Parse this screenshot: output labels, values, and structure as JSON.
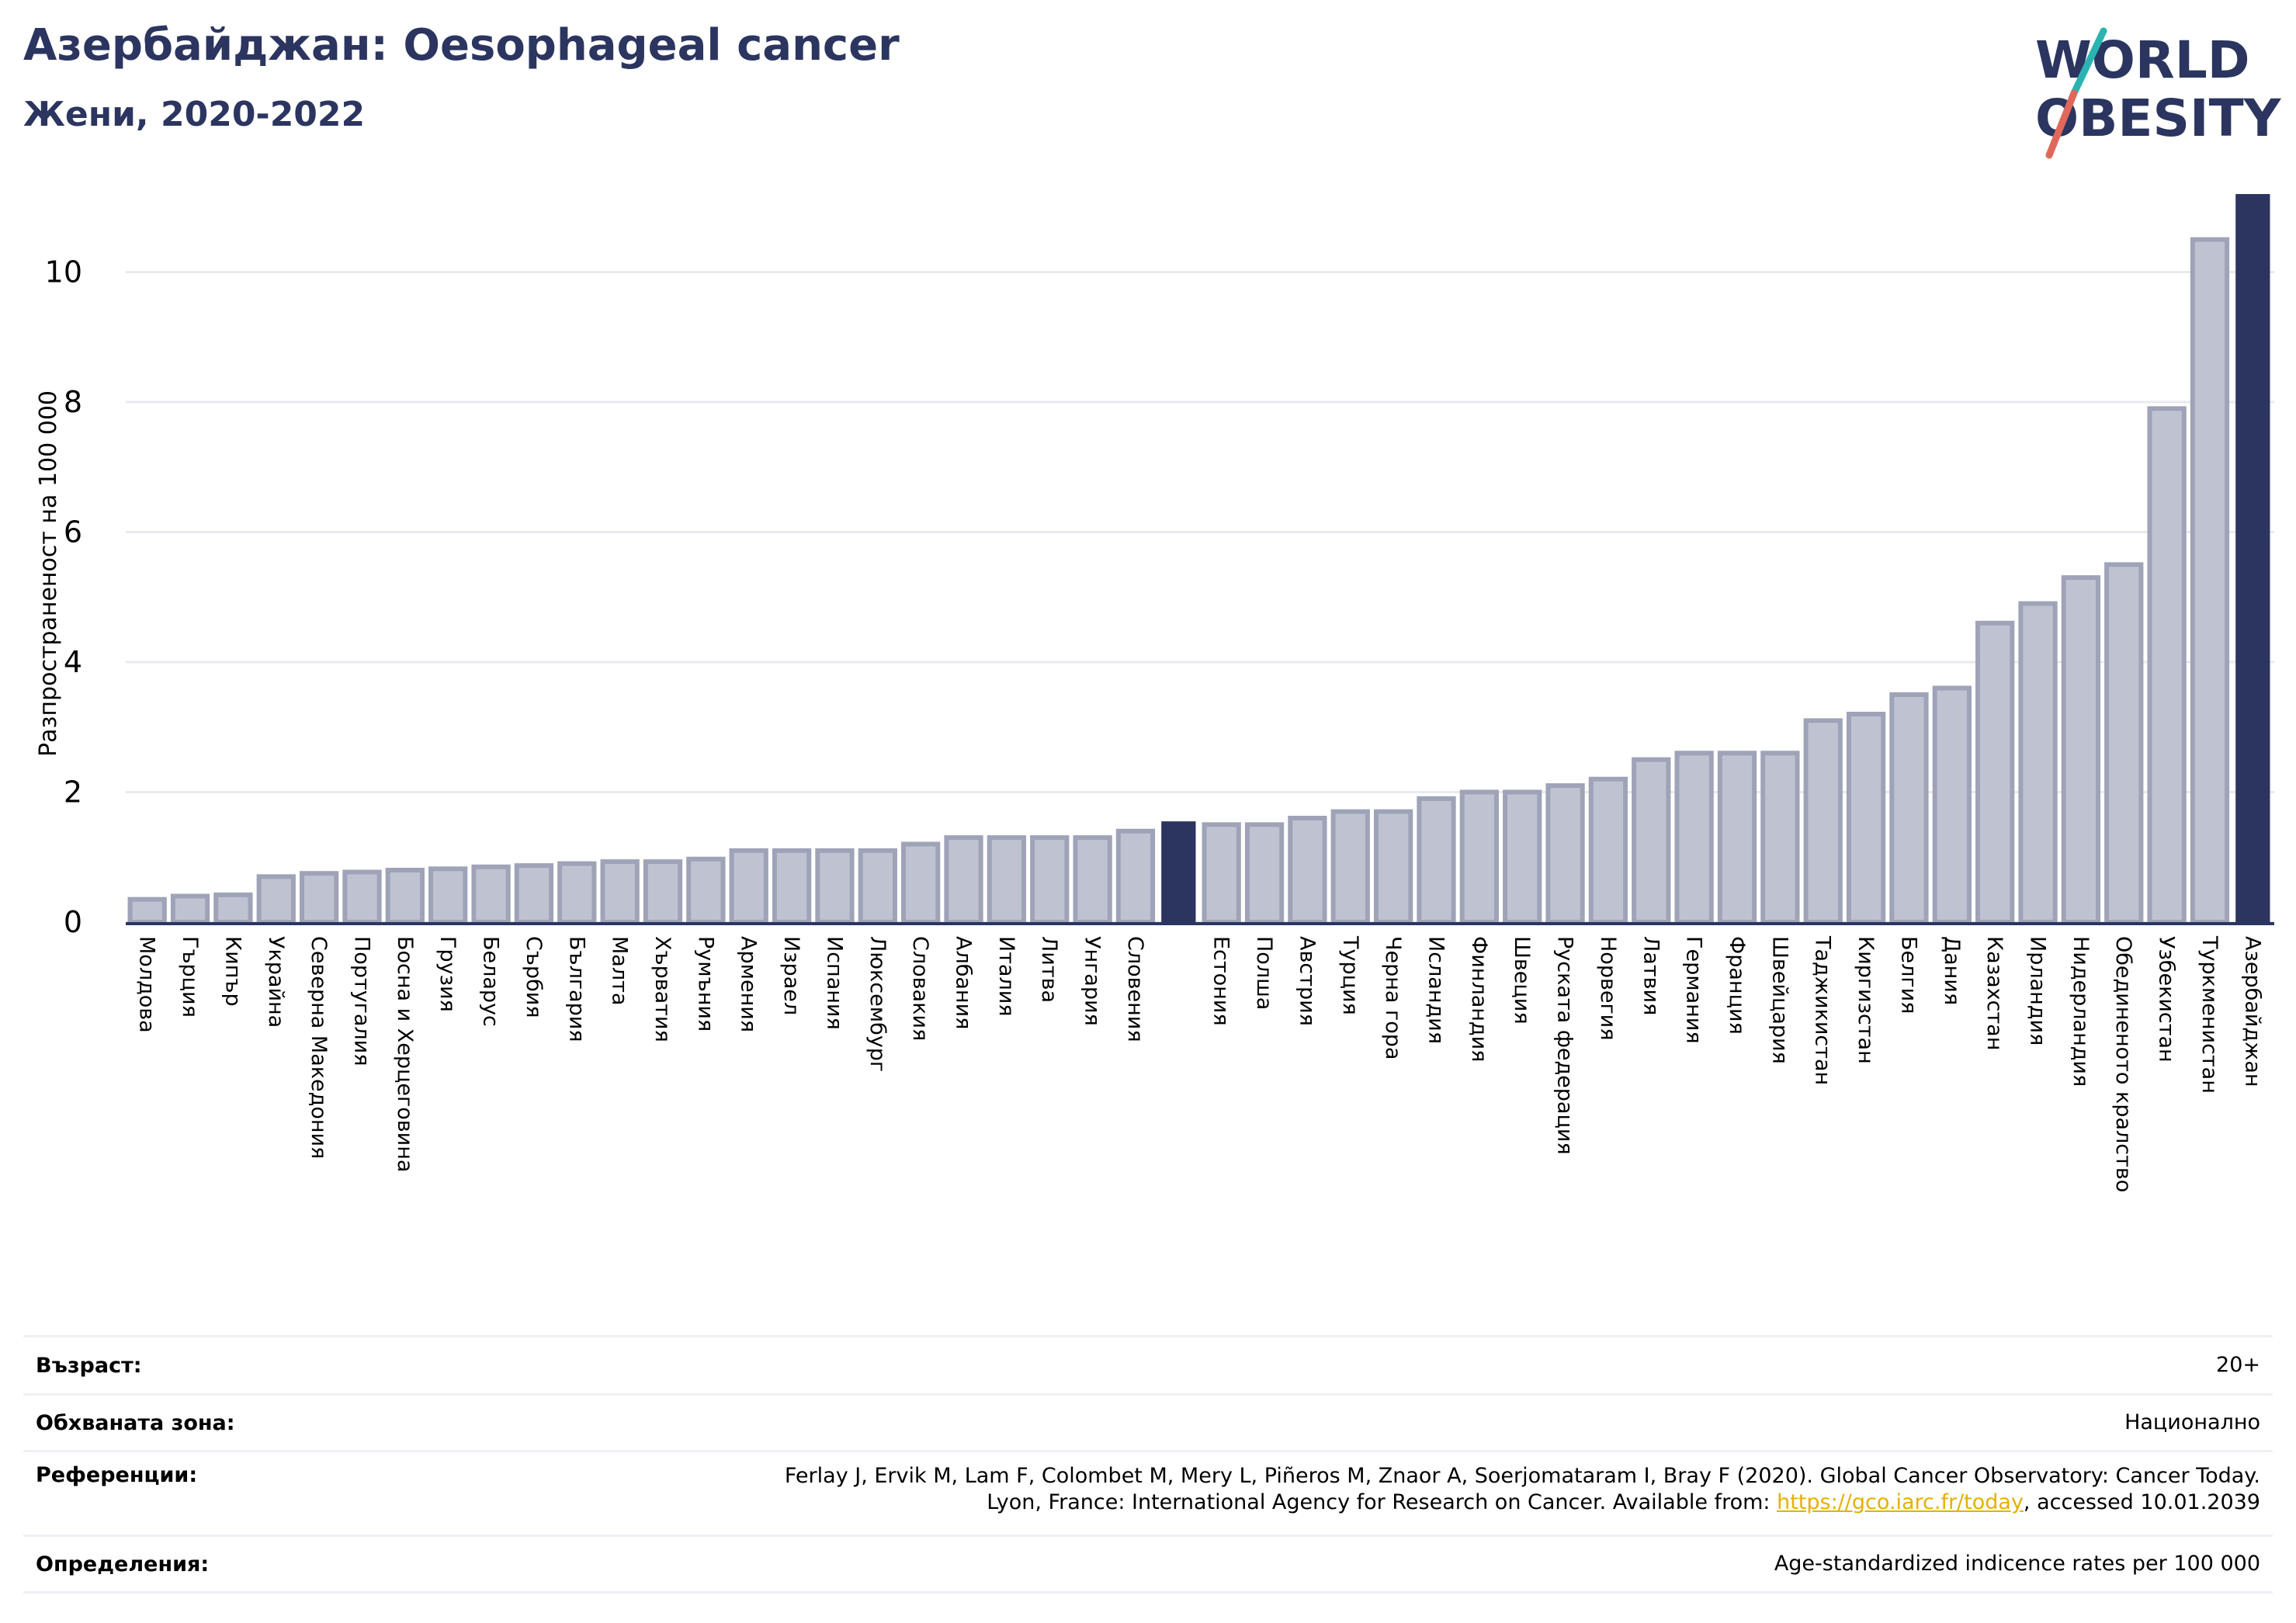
{
  "header": {
    "title": "Азербайджан: Oesophageal cancer",
    "subtitle": "Жени, 2020-2022"
  },
  "logo": {
    "line1": "WORLD",
    "line2": "OBESITY",
    "colors": {
      "text": "#2b3560",
      "teal": "#2bb3b1",
      "coral": "#e0685a"
    }
  },
  "chart_data": {
    "type": "bar",
    "ylabel": "Разпространеност  на 100 000",
    "ylim": [
      0,
      11.2
    ],
    "yticks": [
      0,
      2,
      4,
      6,
      8,
      10
    ],
    "grid": true,
    "highlight": "Азербайджан",
    "colors": {
      "bar": "#bfc3d1",
      "bar_edge": "#9ea3b8",
      "highlight": "#2b3560",
      "grid": "#e8eaef",
      "axis": "#2b3560"
    },
    "categories": [
      "Молдова",
      "Гърция",
      "Кипър",
      "Украйна",
      "Северна Македония",
      "Португалия",
      "Босна и Херцеговина",
      "Грузия",
      "Беларус",
      "Сърбия",
      "България",
      "Малта",
      "Хърватия",
      "Румъния",
      "Армения",
      "Израел",
      "Испания",
      "Люксембург",
      "Словакия",
      "Албания",
      "Италия",
      "Литва",
      "Унгария",
      "Словения",
      "",
      "Естония",
      "Полша",
      "Австрия",
      "Турция",
      "Черна гора",
      "Исландия",
      "Финландия",
      "Швеция",
      "Руската федерация",
      "Норвегия",
      "Латвия",
      "Германия",
      "Франция",
      "Швейцария",
      "Таджикистан",
      "Киргизстан",
      "Белгия",
      "Дания",
      "Казахстан",
      "Ирландия",
      "Нидерландия",
      "Обединеното кралство",
      "Узбекистан",
      "Туркменистан",
      "Азербайджан"
    ],
    "values": [
      0.35,
      0.4,
      0.42,
      0.7,
      0.75,
      0.77,
      0.8,
      0.82,
      0.85,
      0.87,
      0.9,
      0.93,
      0.93,
      0.97,
      1.1,
      1.1,
      1.1,
      1.1,
      1.2,
      1.3,
      1.3,
      1.3,
      1.3,
      1.4,
      1.55,
      1.5,
      1.5,
      1.6,
      1.7,
      1.7,
      1.9,
      2.0,
      2.0,
      2.1,
      2.2,
      2.5,
      2.6,
      2.6,
      2.6,
      3.1,
      3.2,
      3.5,
      3.6,
      4.6,
      4.9,
      5.3,
      5.5,
      7.9,
      10.5,
      11.2
    ],
    "highlight_indices": [
      24,
      49
    ]
  },
  "info": {
    "age_label": "Възраст:",
    "age_value": "20+",
    "zone_label": "Обхваната зона:",
    "zone_value": "Национално",
    "refs_label": "Референции:",
    "refs_line1": "Ferlay J, Ervik M, Lam F, Colombet M, Mery L, Piñeros M, Znaor A, Soerjomataram I, Bray F (2020). Global Cancer Observatory: Cancer Today.",
    "refs_line2_pre": "Lyon, France: International Agency for Research on Cancer. Available from: ",
    "refs_link": "https://gco.iarc.fr/today",
    "refs_line2_post": ", accessed 10.01.2039",
    "defs_label": "Определения:",
    "defs_value": "Age-standardized indicence rates per 100 000"
  }
}
